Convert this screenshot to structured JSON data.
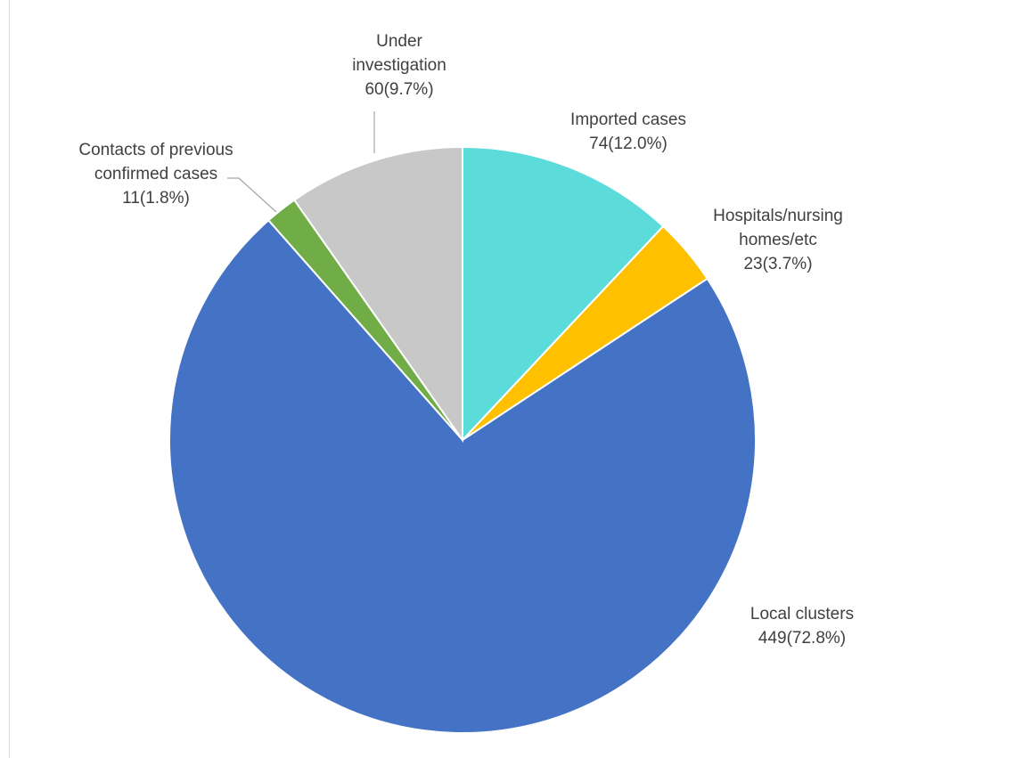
{
  "chart_data": {
    "type": "pie",
    "title": "",
    "slices": [
      {
        "name": "Imported cases",
        "label_lines": [
          "Imported cases"
        ],
        "value": 74,
        "percent_label": "74(12.0%)",
        "color": "#5CDBDB"
      },
      {
        "name": "Hospitals/nursing homes/etc",
        "label_lines": [
          "Hospitals/nursing",
          "homes/etc"
        ],
        "value": 23,
        "percent_label": "23(3.7%)",
        "color": "#FFC000"
      },
      {
        "name": "Local clusters",
        "label_lines": [
          "Local clusters"
        ],
        "value": 449,
        "percent_label": "449(72.8%)",
        "color": "#4472C4"
      },
      {
        "name": "Contacts of previous confirmed cases",
        "label_lines": [
          "Contacts of previous",
          "confirmed cases"
        ],
        "value": 11,
        "percent_label": "11(1.8%)",
        "color": "#70AD47"
      },
      {
        "name": "Under investigation",
        "label_lines": [
          "Under",
          "investigation"
        ],
        "value": 60,
        "percent_label": "60(9.7%)",
        "color": "#C8C8C8"
      }
    ],
    "start_angle": "12 o'clock",
    "direction": "clockwise",
    "legend": "none",
    "data_labels": "outside with leader lines"
  }
}
